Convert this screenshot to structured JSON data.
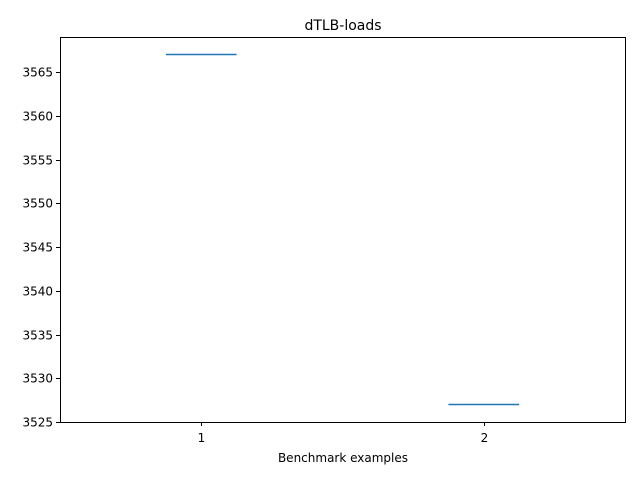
{
  "chart_data": {
    "type": "box",
    "title": "dTLB-loads",
    "xlabel": "Benchmark examples",
    "ylabel": "",
    "categories": [
      "1",
      "2"
    ],
    "series": [
      {
        "values": [
          3567,
          3527
        ]
      }
    ],
    "ylim": [
      3525,
      3569
    ],
    "yticks": [
      3525,
      3530,
      3535,
      3540,
      3545,
      3550,
      3555,
      3560,
      3565
    ],
    "xlim": [
      0.5,
      2.5
    ],
    "grid": false,
    "legend": "none",
    "colors": {
      "series": "#1f77b4",
      "axes": "#000000",
      "background": "#ffffff"
    }
  }
}
